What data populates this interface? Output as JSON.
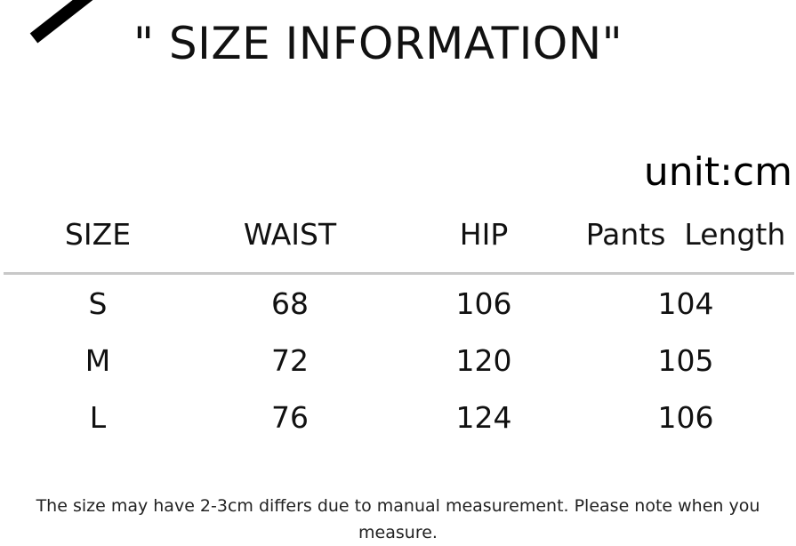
{
  "title": "\" SIZE INFORMATION\"",
  "unit": "unit:cm",
  "table": {
    "headers": [
      "SIZE",
      "WAIST",
      "HIP",
      "Pants  Length"
    ],
    "rows": [
      [
        "S",
        "68",
        "106",
        "104"
      ],
      [
        "M",
        "72",
        "120",
        "105"
      ],
      [
        "L",
        "76",
        "124",
        "106"
      ]
    ]
  },
  "note": "The size may have 2-3cm differs due to manual measurement. Please note when you measure."
}
